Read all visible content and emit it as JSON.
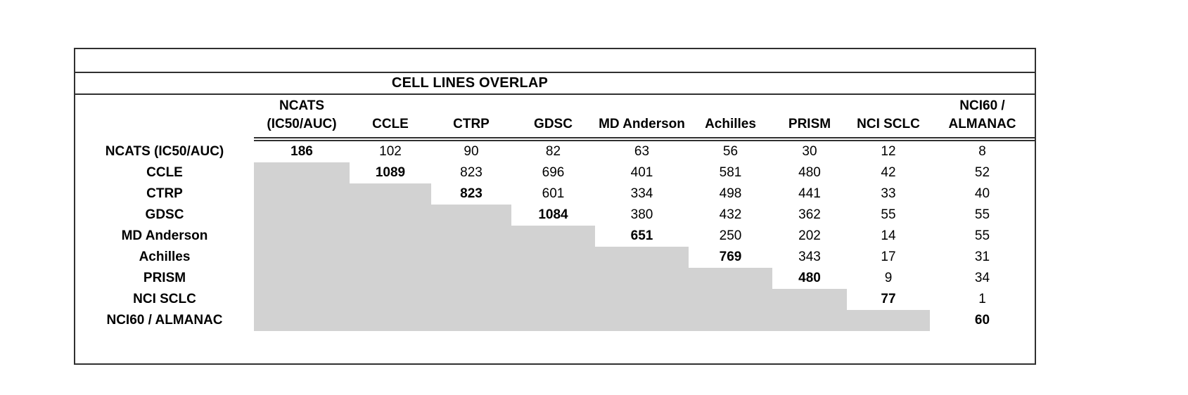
{
  "table": {
    "title": "CELL LINES OVERLAP"
  },
  "chart_data": {
    "type": "table",
    "title": "CELL LINES OVERLAP",
    "columns": [
      "NCATS (IC50/AUC)",
      "CCLE",
      "CTRP",
      "GDSC",
      "MD Anderson",
      "Achilles",
      "PRISM",
      "NCI SCLC",
      "NCI60 / ALMANAC"
    ],
    "column_header_lines": [
      [
        "NCATS",
        "(IC50/AUC)"
      ],
      [
        "CCLE"
      ],
      [
        "CTRP"
      ],
      [
        "GDSC"
      ],
      [
        "MD Anderson"
      ],
      [
        "Achilles"
      ],
      [
        "PRISM"
      ],
      [
        "NCI SCLC"
      ],
      [
        "NCI60 /",
        "ALMANAC"
      ]
    ],
    "row_labels": [
      "NCATS (IC50/AUC)",
      "CCLE",
      "CTRP",
      "GDSC",
      "MD Anderson",
      "Achilles",
      "PRISM",
      "NCI SCLC",
      "NCI60 / ALMANAC"
    ],
    "values": [
      [
        186,
        102,
        90,
        82,
        63,
        56,
        30,
        12,
        8
      ],
      [
        null,
        1089,
        823,
        696,
        401,
        581,
        480,
        42,
        52
      ],
      [
        null,
        null,
        823,
        601,
        334,
        498,
        441,
        33,
        40
      ],
      [
        null,
        null,
        null,
        1084,
        380,
        432,
        362,
        55,
        55
      ],
      [
        null,
        null,
        null,
        null,
        651,
        250,
        202,
        14,
        55
      ],
      [
        null,
        null,
        null,
        null,
        null,
        769,
        343,
        17,
        31
      ],
      [
        null,
        null,
        null,
        null,
        null,
        null,
        480,
        9,
        34
      ],
      [
        null,
        null,
        null,
        null,
        null,
        null,
        null,
        77,
        1
      ],
      [
        null,
        null,
        null,
        null,
        null,
        null,
        null,
        null,
        60
      ]
    ],
    "layout_hints": {
      "diagonal_values_bold": true,
      "lower_triangle_shaded": true,
      "header_double_underline": true,
      "empty_row_above_title": true,
      "legend_position": "none",
      "grid": "off"
    },
    "colors": {
      "lower_triangle_fill": "#d2d2d2",
      "border": "#303030",
      "text": "#000000",
      "background": "#ffffff"
    }
  }
}
